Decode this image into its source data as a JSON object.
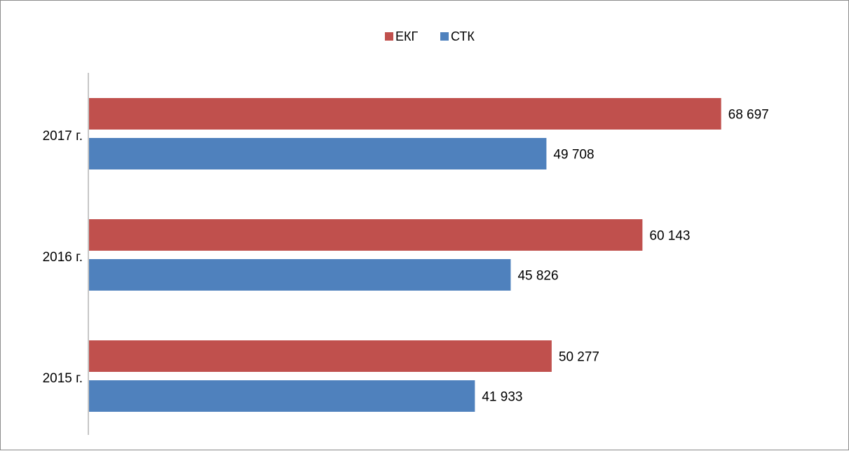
{
  "chart_data": {
    "type": "bar",
    "orientation": "horizontal",
    "categories": [
      "2015 г.",
      "2016 г.",
      "2017 г."
    ],
    "series": [
      {
        "name": "ЕКГ",
        "color": "#c0504d",
        "values": [
          50277,
          60143,
          68697
        ],
        "labels": [
          "50 277",
          "60 143",
          "68 697"
        ]
      },
      {
        "name": "СТК",
        "color": "#4f81bd",
        "values": [
          41933,
          45826,
          49708
        ],
        "labels": [
          "41 933",
          "45 826",
          "49 708"
        ]
      }
    ],
    "xlim": [
      0,
      72000
    ],
    "grid": false,
    "legend": "top"
  }
}
